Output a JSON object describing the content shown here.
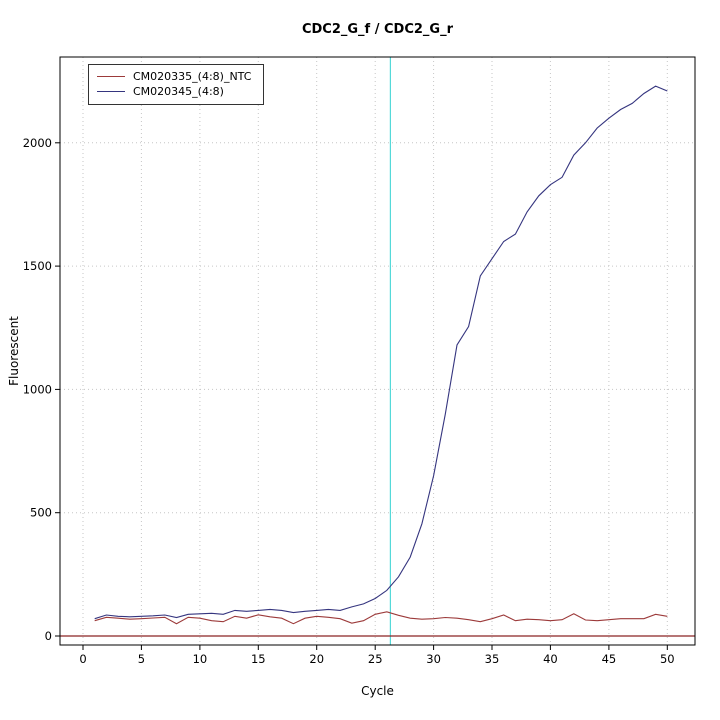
{
  "chart_data": {
    "type": "line",
    "title": "CDC2_G_f / CDC2_G_r",
    "xlabel": "Cycle",
    "ylabel": "Fluorescent",
    "xlim": [
      -1.97,
      52.37
    ],
    "ylim": [
      -36.5,
      2348
    ],
    "x_ticks": [
      0,
      5,
      10,
      15,
      20,
      25,
      30,
      35,
      40,
      45,
      50
    ],
    "y_ticks": [
      0,
      500,
      1000,
      1500,
      2000
    ],
    "grid": true,
    "legend_position": "top-left",
    "threshold_line": {
      "x": 26.3,
      "color": "#55d9d9"
    },
    "baseline": {
      "y": 0,
      "color": "#8b2323"
    },
    "x": [
      1,
      2,
      3,
      4,
      5,
      6,
      7,
      8,
      9,
      10,
      11,
      12,
      13,
      14,
      15,
      16,
      17,
      18,
      19,
      20,
      21,
      22,
      23,
      24,
      25,
      26,
      27,
      28,
      29,
      30,
      31,
      32,
      33,
      34,
      35,
      36,
      37,
      38,
      39,
      40,
      41,
      42,
      43,
      44,
      45,
      46,
      47,
      48,
      49,
      50
    ],
    "series": [
      {
        "name": "CM020335_(4:8)_NTC",
        "color": "#9c3a3a",
        "values": [
          62,
          76,
          72,
          68,
          70,
          73,
          76,
          50,
          76,
          72,
          62,
          58,
          80,
          72,
          86,
          78,
          72,
          50,
          72,
          80,
          76,
          70,
          52,
          62,
          88,
          98,
          84,
          72,
          68,
          70,
          75,
          72,
          66,
          58,
          70,
          85,
          62,
          68,
          66,
          62,
          66,
          90,
          65,
          62,
          66,
          70,
          70,
          70,
          88,
          80
        ]
      },
      {
        "name": "CM020345_(4:8)",
        "color": "#35357f",
        "values": [
          70,
          85,
          80,
          78,
          80,
          82,
          85,
          75,
          88,
          90,
          92,
          88,
          104,
          100,
          104,
          108,
          104,
          95,
          100,
          104,
          108,
          104,
          118,
          130,
          152,
          185,
          240,
          320,
          455,
          650,
          900,
          1180,
          1255,
          1460,
          1530,
          1600,
          1630,
          1720,
          1785,
          1830,
          1860,
          1950,
          2000,
          2060,
          2100,
          2135,
          2160,
          2200,
          2230,
          2210
        ]
      }
    ]
  }
}
